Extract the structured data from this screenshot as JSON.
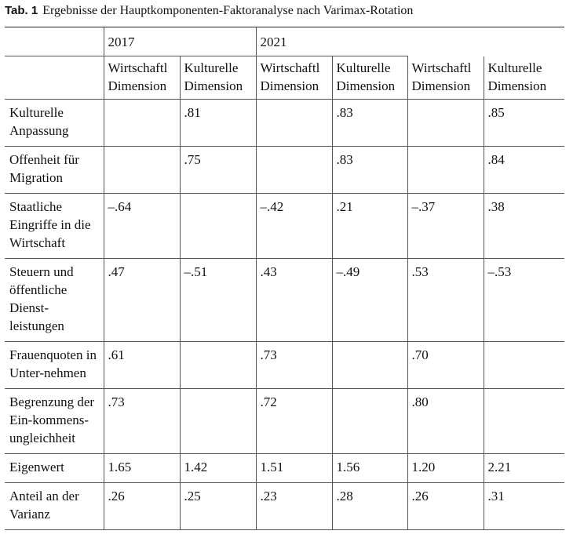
{
  "caption": {
    "label": "Tab. 1",
    "text": "Ergebnisse der Hauptkomponenten-Faktoranalyse nach Varimax-Rotation"
  },
  "years": [
    "2017",
    "2021"
  ],
  "columns": [
    {
      "line1": "Wirtschaftl",
      "line2": "Dimension"
    },
    {
      "line1": "Kulturelle",
      "line2": "Dimension"
    },
    {
      "line1": "Wirtschaftl",
      "line2": "Dimension"
    },
    {
      "line1": "Kulturelle",
      "line2": "Dimension"
    },
    {
      "line1": "Wirtschaftl",
      "line2": "Dimension"
    },
    {
      "line1": "Kulturelle",
      "line2": "Dimension"
    }
  ],
  "rows": [
    {
      "label": "Kulturelle Anpassung",
      "values": [
        "",
        ".81",
        "",
        ".83",
        "",
        ".85"
      ]
    },
    {
      "label": "Offenheit für Migration",
      "values": [
        "",
        ".75",
        "",
        ".83",
        "",
        ".84"
      ]
    },
    {
      "label": "Staatliche Eingriffe in die Wirtschaft",
      "values": [
        "–.64",
        "",
        "–.42",
        ".21",
        "–.37",
        ".38"
      ]
    },
    {
      "label": "Steuern und öffentliche Dienst-leistungen",
      "values": [
        ".47",
        "–.51",
        ".43",
        "–.49",
        ".53",
        "–.53"
      ]
    },
    {
      "label": "Frauenquoten in Unter-nehmen",
      "values": [
        ".61",
        "",
        ".73",
        "",
        ".70",
        ""
      ]
    },
    {
      "label": "Begrenzung der Ein-kommens-ungleichheit",
      "values": [
        ".73",
        "",
        ".72",
        "",
        ".80",
        ""
      ]
    },
    {
      "label": "Eigenwert",
      "values": [
        "1.65",
        "1.42",
        "1.51",
        "1.56",
        "1.20",
        "2.21"
      ]
    },
    {
      "label": "Anteil an der Varianz",
      "values": [
        ".26",
        ".25",
        ".23",
        ".28",
        ".26",
        ".31"
      ]
    }
  ]
}
